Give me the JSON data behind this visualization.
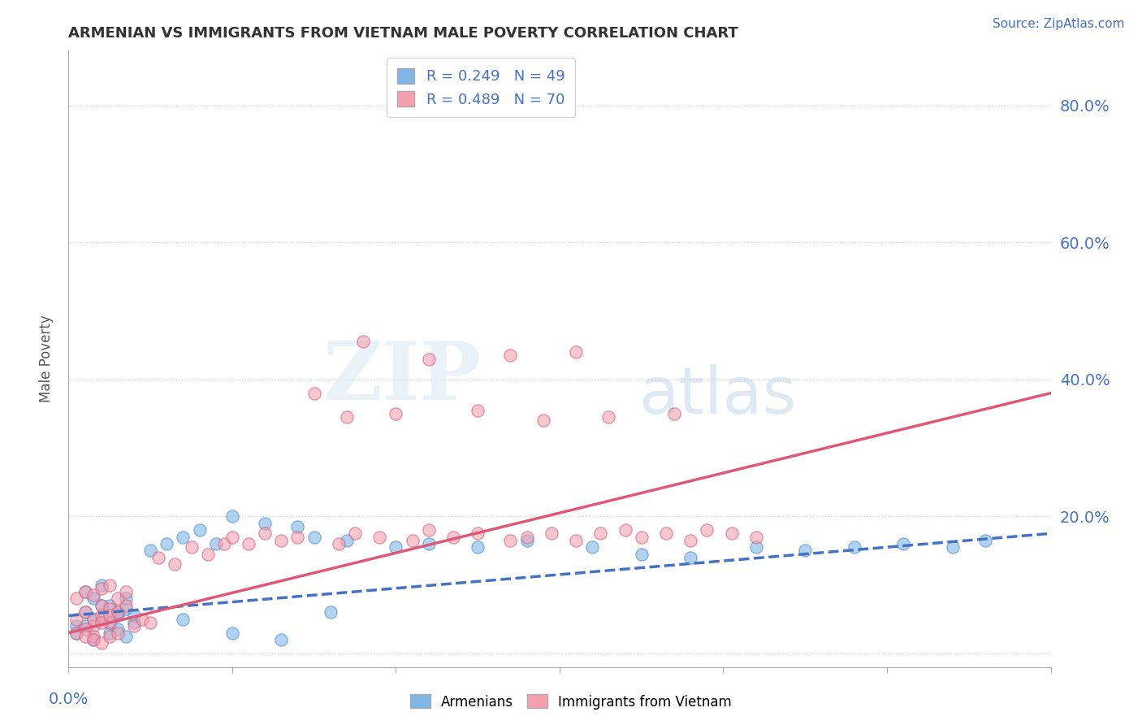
{
  "title": "ARMENIAN VS IMMIGRANTS FROM VIETNAM MALE POVERTY CORRELATION CHART",
  "source_text": "Source: ZipAtlas.com",
  "ylabel": "Male Poverty",
  "xlim": [
    0.0,
    0.6
  ],
  "ylim": [
    -0.02,
    0.88
  ],
  "ytick_positions": [
    0.0,
    0.2,
    0.4,
    0.6,
    0.8
  ],
  "ytick_labels": [
    "",
    "20.0%",
    "40.0%",
    "60.0%",
    "80.0%"
  ],
  "grid_color": "#d0d0d0",
  "background_color": "#ffffff",
  "armenians_color": "#7EB6E8",
  "armenians_edge": "#5090C8",
  "vietnam_color": "#F4A0B0",
  "vietnam_edge": "#D06080",
  "armenians_label": "Armenians",
  "vietnam_label": "Immigrants from Vietnam",
  "legend_R_armenians": "R = 0.249   N = 49",
  "legend_R_vietnam": "R = 0.489   N = 70",
  "watermark_zip": "ZIP",
  "watermark_atlas": "atlas",
  "title_color": "#333333",
  "axis_color": "#4472c4",
  "trend_blue": "#4472c4",
  "trend_pink": "#E05878",
  "armenians_x": [
    0.005,
    0.01,
    0.015,
    0.02,
    0.025,
    0.03,
    0.035,
    0.04,
    0.01,
    0.015,
    0.02,
    0.025,
    0.03,
    0.035,
    0.005,
    0.01,
    0.015,
    0.02,
    0.025,
    0.03,
    0.035,
    0.04,
    0.05,
    0.06,
    0.07,
    0.08,
    0.09,
    0.1,
    0.12,
    0.14,
    0.15,
    0.17,
    0.2,
    0.22,
    0.25,
    0.28,
    0.32,
    0.35,
    0.38,
    0.42,
    0.45,
    0.48,
    0.51,
    0.54,
    0.56,
    0.07,
    0.1,
    0.13,
    0.16
  ],
  "armenians_y": [
    0.04,
    0.06,
    0.05,
    0.07,
    0.045,
    0.055,
    0.065,
    0.055,
    0.09,
    0.08,
    0.1,
    0.07,
    0.06,
    0.08,
    0.03,
    0.04,
    0.02,
    0.05,
    0.03,
    0.035,
    0.025,
    0.045,
    0.15,
    0.16,
    0.17,
    0.18,
    0.16,
    0.2,
    0.19,
    0.185,
    0.17,
    0.165,
    0.155,
    0.16,
    0.155,
    0.165,
    0.155,
    0.145,
    0.14,
    0.155,
    0.15,
    0.155,
    0.16,
    0.155,
    0.165,
    0.05,
    0.03,
    0.02,
    0.06
  ],
  "vietnam_x": [
    0.005,
    0.01,
    0.015,
    0.02,
    0.025,
    0.005,
    0.01,
    0.015,
    0.02,
    0.025,
    0.005,
    0.01,
    0.015,
    0.02,
    0.025,
    0.03,
    0.035,
    0.04,
    0.045,
    0.05,
    0.015,
    0.02,
    0.025,
    0.03,
    0.035,
    0.01,
    0.015,
    0.02,
    0.025,
    0.03,
    0.055,
    0.065,
    0.075,
    0.085,
    0.095,
    0.1,
    0.11,
    0.12,
    0.13,
    0.14,
    0.15,
    0.165,
    0.175,
    0.19,
    0.21,
    0.22,
    0.235,
    0.25,
    0.27,
    0.28,
    0.295,
    0.31,
    0.325,
    0.34,
    0.35,
    0.365,
    0.38,
    0.39,
    0.405,
    0.42,
    0.18,
    0.22,
    0.27,
    0.31,
    0.17,
    0.2,
    0.25,
    0.29,
    0.33,
    0.37
  ],
  "vietnam_y": [
    0.05,
    0.06,
    0.04,
    0.07,
    0.045,
    0.08,
    0.09,
    0.05,
    0.055,
    0.065,
    0.03,
    0.035,
    0.025,
    0.045,
    0.055,
    0.06,
    0.07,
    0.04,
    0.05,
    0.045,
    0.085,
    0.095,
    0.1,
    0.08,
    0.09,
    0.025,
    0.02,
    0.015,
    0.025,
    0.03,
    0.14,
    0.13,
    0.155,
    0.145,
    0.16,
    0.17,
    0.16,
    0.175,
    0.165,
    0.17,
    0.38,
    0.16,
    0.175,
    0.17,
    0.165,
    0.18,
    0.17,
    0.175,
    0.165,
    0.17,
    0.175,
    0.165,
    0.175,
    0.18,
    0.17,
    0.175,
    0.165,
    0.18,
    0.175,
    0.17,
    0.455,
    0.43,
    0.435,
    0.44,
    0.345,
    0.35,
    0.355,
    0.34,
    0.345,
    0.35
  ]
}
